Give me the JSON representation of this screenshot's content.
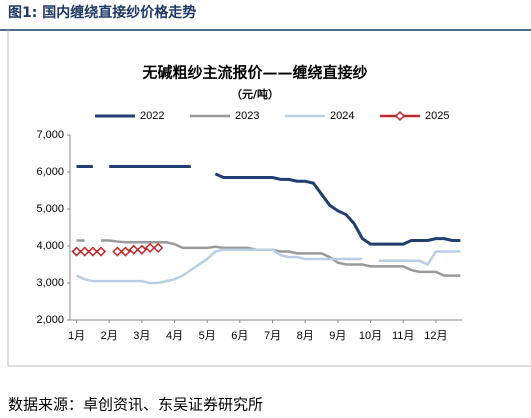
{
  "header": "图1:  国内缠绕直接纱价格走势",
  "source": "数据来源：卓创资讯、东吴证券研究所",
  "chart_data": {
    "type": "line",
    "title": "无碱粗纱主流报价——缠绕直接纱",
    "subtitle": "（元/吨）",
    "x": [
      1,
      1.25,
      1.5,
      1.75,
      2,
      2.25,
      2.5,
      2.75,
      3,
      3.25,
      3.5,
      3.75,
      4,
      4.25,
      4.5,
      4.75,
      5,
      5.25,
      5.5,
      5.75,
      6,
      6.25,
      6.5,
      6.75,
      7,
      7.25,
      7.5,
      7.75,
      8,
      8.25,
      8.5,
      8.75,
      9,
      9.25,
      9.5,
      9.75,
      10,
      10.25,
      10.5,
      10.75,
      11,
      11.25,
      11.5,
      11.75,
      12,
      12.25,
      12.5,
      12.75
    ],
    "xlim": [
      0.8,
      12.8
    ],
    "xticks": [
      {
        "value": 1,
        "label": "1月"
      },
      {
        "value": 2,
        "label": "2月"
      },
      {
        "value": 3,
        "label": "3月"
      },
      {
        "value": 4,
        "label": "4月"
      },
      {
        "value": 5,
        "label": "5月"
      },
      {
        "value": 6,
        "label": "6月"
      },
      {
        "value": 7,
        "label": "7月"
      },
      {
        "value": 8,
        "label": "8月"
      },
      {
        "value": 9,
        "label": "9月"
      },
      {
        "value": 10,
        "label": "10月"
      },
      {
        "value": 11,
        "label": "11月"
      },
      {
        "value": 12,
        "label": "12月"
      }
    ],
    "ylim": [
      2000,
      7000
    ],
    "yticks": [
      {
        "value": 2000,
        "label": "2,000"
      },
      {
        "value": 3000,
        "label": "3,000"
      },
      {
        "value": 4000,
        "label": "4,000"
      },
      {
        "value": 5000,
        "label": "5,000"
      },
      {
        "value": 6000,
        "label": "6,000"
      },
      {
        "value": 7000,
        "label": "7,000"
      }
    ],
    "series": [
      {
        "name": "2022",
        "color": "#1f3f6e",
        "values": [
          6150,
          6150,
          6150,
          null,
          6150,
          6150,
          6150,
          6150,
          6150,
          6150,
          6150,
          6150,
          6150,
          6150,
          6150,
          null,
          null,
          5950,
          5850,
          5850,
          5850,
          5850,
          5850,
          5850,
          5850,
          5800,
          5800,
          5750,
          5750,
          5700,
          5400,
          5100,
          4950,
          4850,
          4600,
          4200,
          4050,
          4050,
          4050,
          4050,
          4050,
          4150,
          4150,
          4150,
          4200,
          4200,
          4150,
          4150
        ]
      },
      {
        "name": "2023",
        "color": "#9a9a9a",
        "values": [
          4150,
          4150,
          null,
          4150,
          4150,
          4120,
          4100,
          4100,
          4100,
          4100,
          4100,
          4100,
          4050,
          3950,
          3950,
          3950,
          3950,
          3980,
          3950,
          3950,
          3950,
          3950,
          3900,
          3900,
          3900,
          3850,
          3850,
          3800,
          3800,
          3800,
          3800,
          3700,
          3550,
          3500,
          3500,
          3500,
          3450,
          3450,
          3450,
          3450,
          3450,
          3350,
          3300,
          3300,
          3300,
          3200,
          3200,
          3200
        ]
      },
      {
        "name": "2024",
        "color": "#b8cfe6",
        "values": [
          3200,
          3100,
          3050,
          3050,
          3050,
          3050,
          3050,
          3050,
          3050,
          3000,
          3000,
          3050,
          3100,
          3200,
          3350,
          3500,
          3650,
          3850,
          3900,
          3900,
          3900,
          3900,
          3900,
          3900,
          3900,
          3750,
          3700,
          3700,
          3650,
          3650,
          3650,
          3650,
          3650,
          3650,
          3650,
          3650,
          null,
          3600,
          3600,
          3600,
          3600,
          3600,
          3600,
          3500,
          3850,
          3850,
          3850,
          3850
        ]
      },
      {
        "name": "2025",
        "color": "#c0282d",
        "marker": "diamond",
        "values": [
          3850,
          3850,
          3850,
          3850,
          null,
          3850,
          3850,
          3900,
          3900,
          3950,
          3950,
          null,
          null,
          null,
          null,
          null,
          null,
          null,
          null,
          null,
          null,
          null,
          null,
          null,
          null,
          null,
          null,
          null,
          null,
          null,
          null,
          null,
          null,
          null,
          null,
          null,
          null,
          null,
          null,
          null,
          null,
          null,
          null,
          null,
          null,
          null,
          null,
          null
        ]
      }
    ]
  }
}
